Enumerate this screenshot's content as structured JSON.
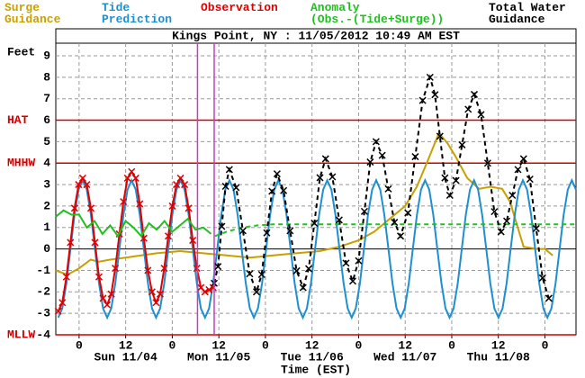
{
  "chart_data": {
    "type": "line",
    "title": "Kings Point, NY : 11/05/2012 10:49 AM EST",
    "y_label": "Feet",
    "x_label": "Time (EST)",
    "xlim": [
      -6,
      128
    ],
    "ylim": [
      -4,
      9
    ],
    "yticks": [
      -4,
      -3,
      -2,
      -1,
      0,
      1,
      2,
      3,
      4,
      5,
      6,
      7,
      8,
      9
    ],
    "xticks": [
      {
        "value": 0,
        "label": "0"
      },
      {
        "value": 12,
        "label": "12"
      },
      {
        "value": 24,
        "label": "0"
      },
      {
        "value": 36,
        "label": "12"
      },
      {
        "value": 48,
        "label": "0"
      },
      {
        "value": 60,
        "label": "12"
      },
      {
        "value": 72,
        "label": "0"
      },
      {
        "value": 84,
        "label": "12"
      },
      {
        "value": 96,
        "label": "0"
      },
      {
        "value": 108,
        "label": "12"
      },
      {
        "value": 120,
        "label": "0"
      }
    ],
    "day_labels": [
      {
        "value": 12,
        "label": "Sun 11/04"
      },
      {
        "value": 36,
        "label": "Mon 11/05"
      },
      {
        "value": 60,
        "label": "Tue 11/06"
      },
      {
        "value": 84,
        "label": "Wed 11/07"
      },
      {
        "value": 108,
        "label": "Thu 11/08"
      }
    ],
    "grid": true,
    "datums": [
      {
        "label": "HAT",
        "value": 6
      },
      {
        "label": "MHHW",
        "value": 4
      },
      {
        "label": "MLLW",
        "value": -4
      }
    ],
    "datum_color": "#d00000",
    "vertical_lines": [
      {
        "value": 30.5,
        "color": "#c040c0"
      },
      {
        "value": 34.8,
        "color": "#c040c0"
      }
    ],
    "series": [
      {
        "name": "Surge\nGuidance",
        "color": "#c8a000",
        "style": "solid",
        "x": [
          -6,
          -3,
          0,
          3,
          5,
          8,
          12,
          16,
          20,
          26,
          32,
          38,
          44,
          50,
          56,
          62,
          67,
          72,
          76,
          80,
          84,
          87,
          90,
          92.7,
          95,
          97,
          100,
          103,
          106,
          109,
          111,
          113,
          114.5,
          118,
          120,
          122
        ],
        "values": [
          -1.0,
          -1.2,
          -0.9,
          -0.5,
          -0.6,
          -0.5,
          -0.4,
          -0.3,
          -0.2,
          -0.1,
          -0.2,
          -0.3,
          -0.4,
          -0.3,
          -0.2,
          -0.1,
          0.1,
          0.4,
          0.8,
          1.4,
          2.0,
          2.9,
          4.2,
          5.4,
          4.9,
          4.3,
          3.3,
          2.8,
          2.9,
          2.8,
          2.2,
          1.0,
          0.1,
          0.0,
          0.0,
          -0.3
        ]
      },
      {
        "name": "Tide\nPrediction",
        "color": "#1e8fd0",
        "style": "solid",
        "x": [
          -5.37,
          -4.32,
          -3.27,
          -2.22,
          -1.17,
          -0.12,
          0.93,
          1.98,
          3.03,
          4.08,
          5.13,
          6.18,
          7.23,
          8.28,
          9.33,
          10.38,
          11.43,
          12.48,
          13.53,
          14.58,
          15.63,
          16.68,
          17.73,
          18.78,
          19.83,
          20.88,
          21.93,
          22.98,
          24.03,
          25.08,
          26.13,
          27.18,
          28.23,
          29.28,
          30.33,
          31.38,
          32.43,
          33.48,
          34.53,
          35.58,
          36.63,
          37.68,
          38.73,
          39.78,
          40.83,
          41.88,
          42.93,
          43.98,
          45.03,
          46.08,
          47.13,
          48.18,
          49.23,
          50.28,
          51.33,
          52.38,
          53.43,
          54.48,
          55.53,
          56.58,
          57.63,
          58.68,
          59.73,
          60.78,
          61.83,
          62.88,
          63.93,
          64.98,
          66.03,
          67.08,
          68.13,
          69.18,
          70.23,
          71.28,
          72.33,
          73.38,
          74.43,
          75.48,
          76.53,
          77.58,
          78.63,
          79.68,
          80.73,
          81.78,
          82.83,
          83.88,
          84.93,
          85.98,
          87.03,
          88.08,
          89.13,
          90.18,
          91.23,
          92.28,
          93.33,
          94.38,
          95.43,
          96.48,
          97.53,
          98.58,
          99.63,
          100.68,
          101.73,
          102.78,
          103.83,
          104.88,
          105.93,
          106.98,
          108.03,
          109.08,
          110.13,
          111.18,
          112.23,
          113.28,
          114.33,
          115.38,
          116.43,
          117.48,
          118.53,
          119.58,
          120.63,
          121.68,
          122.73,
          123.78,
          124.83,
          125.88,
          126.93,
          127.98
        ],
        "values": [
          -3.2,
          -2.77,
          -1.6,
          0,
          1.6,
          2.77,
          3.2,
          2.77,
          1.6,
          0,
          -1.6,
          -2.77,
          -3.2,
          -2.77,
          -1.6,
          0,
          1.6,
          2.77,
          3.2,
          2.77,
          1.6,
          0,
          -1.6,
          -2.77,
          -3.2,
          -2.77,
          -1.6,
          0,
          1.6,
          2.77,
          3.2,
          2.77,
          1.6,
          0,
          -1.6,
          -2.77,
          -3.2,
          -2.77,
          -1.6,
          0,
          1.6,
          2.77,
          3.2,
          2.77,
          1.6,
          0,
          -1.6,
          -2.77,
          -3.2,
          -2.77,
          -1.6,
          0,
          1.6,
          2.77,
          3.2,
          2.77,
          1.6,
          0,
          -1.6,
          -2.77,
          -3.2,
          -2.77,
          -1.6,
          0,
          1.6,
          2.77,
          3.2,
          2.77,
          1.6,
          0,
          -1.6,
          -2.77,
          -3.2,
          -2.77,
          -1.6,
          0,
          1.6,
          2.77,
          3.2,
          2.77,
          1.6,
          0,
          -1.6,
          -2.77,
          -3.2,
          -2.77,
          -1.6,
          0,
          1.6,
          2.77,
          3.2,
          2.77,
          1.6,
          0,
          -1.6,
          -2.77,
          -3.2,
          -2.77,
          -1.6,
          0,
          1.6,
          2.77,
          3.2,
          2.77,
          1.6,
          0,
          -1.6,
          -2.77,
          -3.2,
          -2.77,
          -1.6,
          0,
          1.6,
          2.77,
          3.2,
          2.77,
          1.6,
          0,
          -1.6,
          -2.77,
          -3.2,
          -2.77,
          -1.6,
          0,
          1.6,
          2.77,
          3.2,
          2.77
        ]
      },
      {
        "name": "Observation",
        "color": "#e00000",
        "style": "solid",
        "marker": "x",
        "x": [
          -5.37,
          -4.32,
          -3.27,
          -2.22,
          -1.17,
          -0.12,
          0.93,
          1.98,
          3.03,
          4.08,
          5.13,
          6.18,
          7.23,
          8.28,
          9.33,
          10.38,
          11.43,
          12.48,
          13.53,
          14.58,
          15.63,
          16.68,
          17.73,
          18.78,
          19.83,
          20.88,
          21.93,
          22.98,
          24.03,
          25.08,
          26.13,
          27.18,
          28.23,
          29.28,
          30.33,
          31.38,
          32.43,
          33.48,
          34.53
        ],
        "values": [
          -2.9,
          -2.5,
          -1.3,
          0.3,
          1.9,
          3.0,
          3.3,
          3.0,
          1.9,
          0.3,
          -1.3,
          -2.3,
          -2.6,
          -2.1,
          -0.9,
          0.7,
          2.2,
          3.3,
          3.6,
          3.3,
          2.1,
          0.5,
          -1.0,
          -2.0,
          -2.5,
          -2.1,
          -0.9,
          0.6,
          2.0,
          3.0,
          3.3,
          3.0,
          1.9,
          0.4,
          -0.9,
          -1.8,
          -2.0,
          -1.9,
          -1.8
        ]
      },
      {
        "name": "Anomaly\n(Obs.-(Tide+Surge))",
        "color": "#20c020",
        "style": "solid",
        "x": [
          -6,
          -4,
          -2,
          0,
          2,
          4,
          6,
          8,
          10,
          12,
          14,
          16,
          18,
          20,
          22,
          24,
          26,
          28,
          30,
          32,
          34
        ],
        "values": [
          1.5,
          1.8,
          1.6,
          1.6,
          1.0,
          1.3,
          0.7,
          1.1,
          0.6,
          1.3,
          1.0,
          0.6,
          1.2,
          0.9,
          1.3,
          0.8,
          1.1,
          1.4,
          0.9,
          1.0,
          0.7
        ]
      },
      {
        "color": "#20c020",
        "style": "dashed",
        "x": [
          35,
          38,
          42,
          46,
          50,
          128
        ],
        "values": [
          0.6,
          0.8,
          1.0,
          1.1,
          1.15,
          1.15
        ]
      },
      {
        "name": "Total Water\nGuidance",
        "color": "#000000",
        "style": "dashed",
        "marker": "x",
        "x": [
          34.8,
          35.78,
          36.75,
          37.73,
          38.7,
          40.45,
          42.2,
          43.95,
          45.7,
          47.03,
          48.35,
          49.68,
          51.0,
          52.68,
          54.35,
          56.03,
          57.7,
          59.15,
          60.6,
          62.05,
          63.5,
          65.25,
          67.0,
          68.75,
          70.5,
          72.0,
          73.5,
          75.0,
          76.5,
          78.08,
          79.65,
          81.23,
          82.8,
          84.7,
          86.6,
          88.5,
          90.4,
          91.68,
          92.95,
          94.23,
          95.5,
          97.08,
          98.65,
          100.23,
          101.8,
          103.53,
          105.25,
          106.98,
          108.7,
          110.15,
          111.6,
          113.05,
          114.5,
          116.13,
          117.75,
          119.38,
          121.0
        ],
        "values": [
          -1.6,
          -0.82,
          1.05,
          2.92,
          3.7,
          2.86,
          0.85,
          -1.16,
          -2.0,
          -1.19,
          0.75,
          2.69,
          3.5,
          2.72,
          0.85,
          -1.02,
          -1.8,
          -0.92,
          1.2,
          3.32,
          4.2,
          3.36,
          1.35,
          -0.66,
          -1.5,
          -0.55,
          1.75,
          4.05,
          5.0,
          4.36,
          2.8,
          1.24,
          0.6,
          1.68,
          4.3,
          6.92,
          8.0,
          7.19,
          5.25,
          3.31,
          2.5,
          3.19,
          4.85,
          6.51,
          7.2,
          6.26,
          4.0,
          1.74,
          0.8,
          1.3,
          2.5,
          3.7,
          4.2,
          3.25,
          0.95,
          -1.35,
          -2.3
        ]
      }
    ]
  }
}
